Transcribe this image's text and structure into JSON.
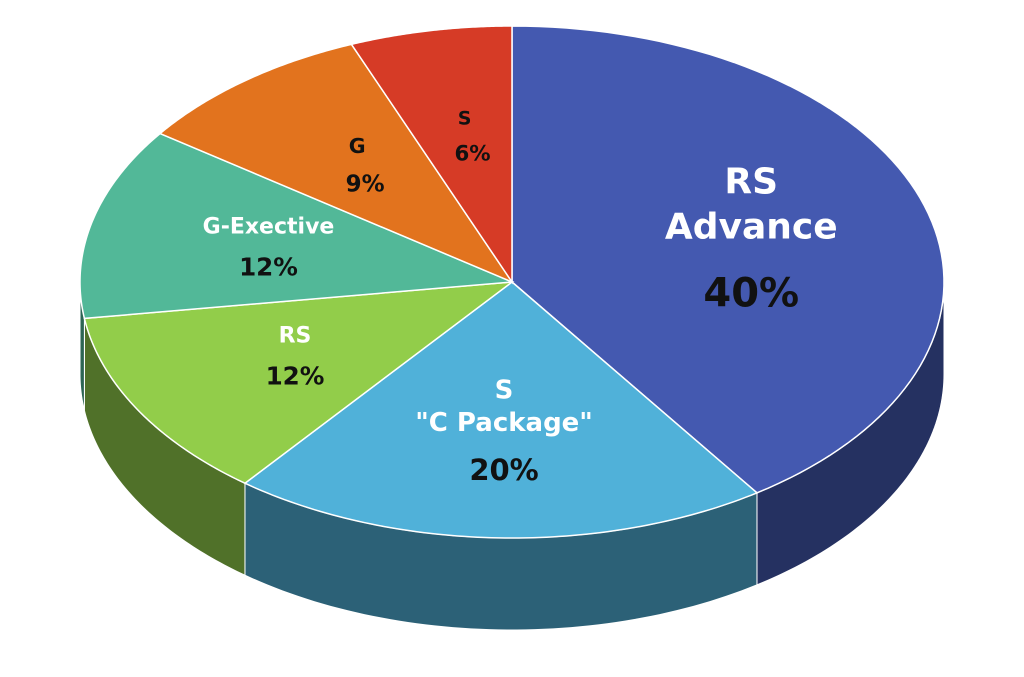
{
  "chart_data": {
    "type": "pie",
    "categories": [
      [
        "RS",
        "Advance"
      ],
      [
        "S",
        "\"C Package\""
      ],
      [
        "RS"
      ],
      [
        "G-Exective"
      ],
      [
        "G"
      ],
      [
        "S"
      ]
    ],
    "values": [
      40,
      20,
      12,
      12,
      9,
      6
    ],
    "value_labels": [
      "40%",
      "20%",
      "12%",
      "12%",
      "9%",
      "6%"
    ],
    "colors": [
      "#4459b0",
      "#50b1d9",
      "#92cd4a",
      "#52b898",
      "#e2731e",
      "#d63b26"
    ]
  }
}
